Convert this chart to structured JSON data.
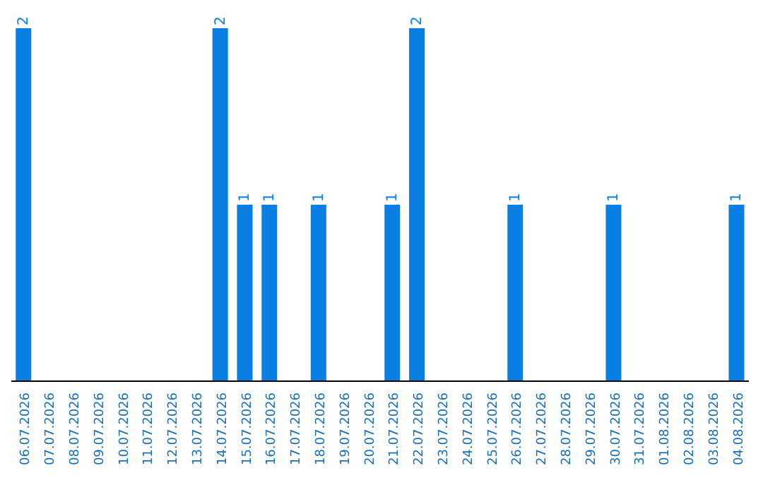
{
  "chart_data": {
    "type": "bar",
    "categories": [
      "06.07.2026",
      "07.07.2026",
      "08.07.2026",
      "09.07.2026",
      "10.07.2026",
      "11.07.2026",
      "12.07.2026",
      "13.07.2026",
      "14.07.2026",
      "15.07.2026",
      "16.07.2026",
      "17.07.2026",
      "18.07.2026",
      "19.07.2026",
      "20.07.2026",
      "21.07.2026",
      "22.07.2026",
      "23.07.2026",
      "24.07.2026",
      "25.07.2026",
      "26.07.2026",
      "27.07.2026",
      "28.07.2026",
      "29.07.2026",
      "30.07.2026",
      "31.07.2026",
      "01.08.2026",
      "02.08.2026",
      "03.08.2026",
      "04.08.2026"
    ],
    "values": [
      2,
      0,
      0,
      0,
      0,
      0,
      0,
      0,
      2,
      1,
      1,
      0,
      1,
      0,
      0,
      1,
      2,
      0,
      0,
      0,
      1,
      0,
      0,
      0,
      1,
      0,
      0,
      0,
      0,
      1
    ],
    "value_labels": [
      "2",
      null,
      null,
      null,
      null,
      null,
      null,
      null,
      "2",
      "1",
      "1",
      null,
      "1",
      null,
      null,
      "1",
      "2",
      null,
      null,
      null,
      "1",
      null,
      null,
      null,
      "1",
      null,
      null,
      null,
      null,
      "1"
    ],
    "color": "#0a7fe3"
  }
}
